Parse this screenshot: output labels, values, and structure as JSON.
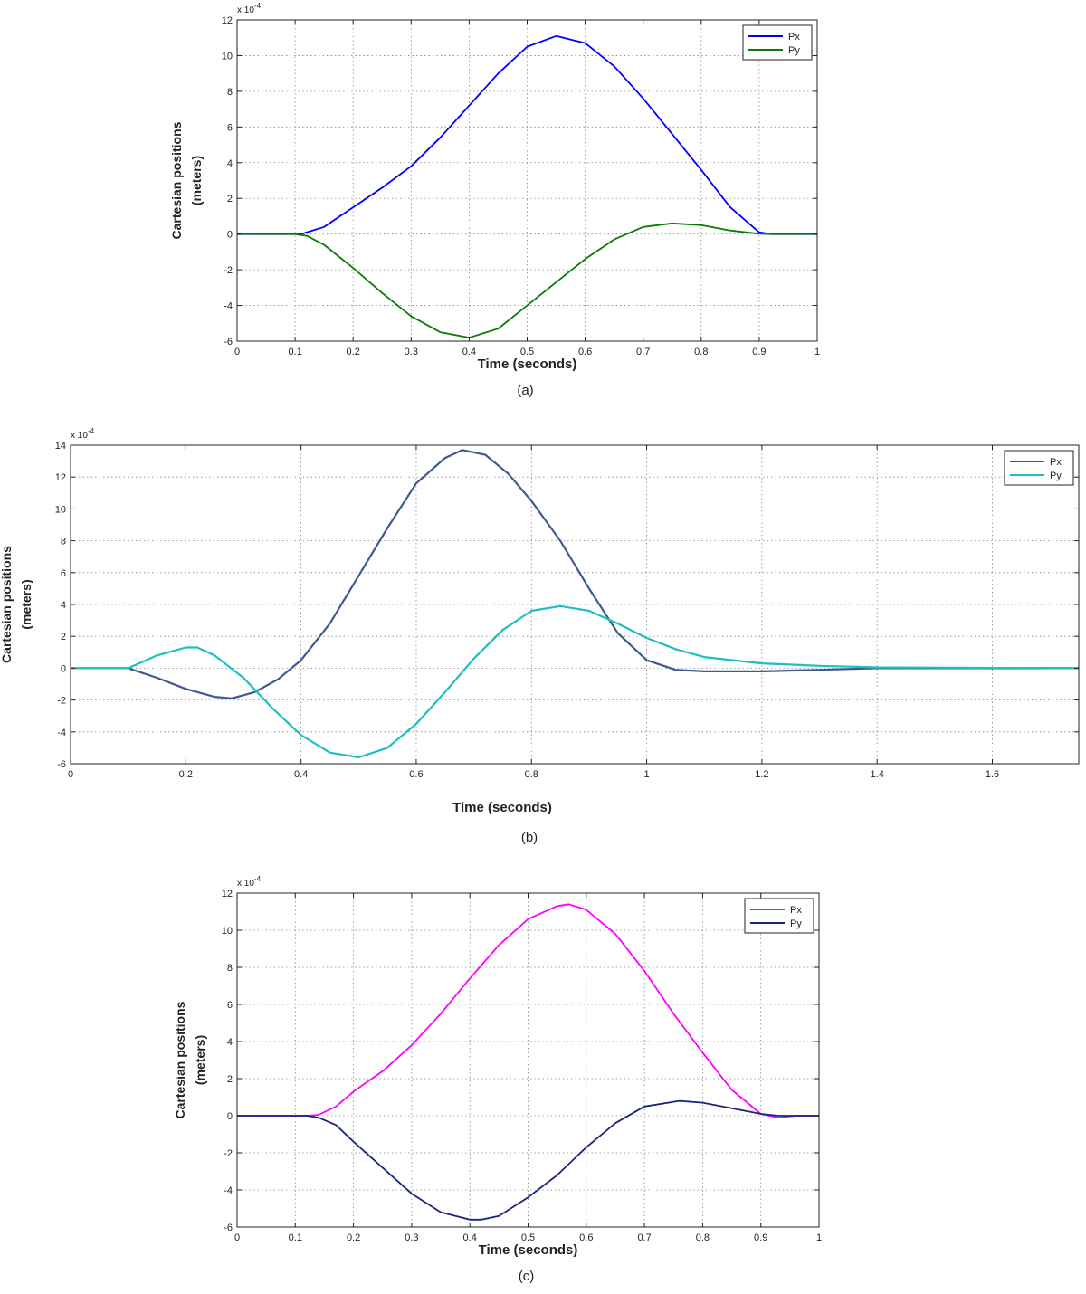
{
  "charts": [
    {
      "caption": "(a)",
      "exponent_label": "x 10",
      "exponent_power": "-4",
      "chart_data": {
        "type": "line",
        "xlabel": "Time (seconds)",
        "ylabel_line1": "Cartesian positions",
        "ylabel_line2": "(meters)",
        "xlim": [
          0,
          1
        ],
        "ylim": [
          -6,
          12
        ],
        "xticks": [
          0,
          0.1,
          0.2,
          0.3,
          0.4,
          0.5,
          0.6,
          0.7,
          0.8,
          0.9,
          1
        ],
        "yticks": [
          -6,
          -4,
          -2,
          0,
          2,
          4,
          6,
          8,
          10,
          12
        ],
        "grid": true,
        "legend_position": "top-right",
        "series": [
          {
            "name": "Px",
            "color": "#0000ff",
            "x": [
              0,
              0.1,
              0.11,
              0.15,
              0.2,
              0.25,
              0.3,
              0.35,
              0.4,
              0.45,
              0.5,
              0.55,
              0.6,
              0.65,
              0.7,
              0.75,
              0.8,
              0.85,
              0.9,
              0.92,
              1.0
            ],
            "y": [
              0,
              0,
              0,
              0.4,
              1.5,
              2.6,
              3.8,
              5.4,
              7.2,
              9.0,
              10.5,
              11.1,
              10.7,
              9.4,
              7.6,
              5.6,
              3.6,
              1.5,
              0.1,
              0,
              0
            ]
          },
          {
            "name": "Py",
            "color": "#0a7a0a",
            "x": [
              0,
              0.1,
              0.12,
              0.15,
              0.2,
              0.25,
              0.3,
              0.35,
              0.4,
              0.45,
              0.5,
              0.55,
              0.6,
              0.65,
              0.7,
              0.75,
              0.8,
              0.85,
              0.9,
              0.92,
              1.0
            ],
            "y": [
              0,
              0,
              -0.1,
              -0.6,
              -1.9,
              -3.3,
              -4.6,
              -5.5,
              -5.8,
              -5.3,
              -4.0,
              -2.7,
              -1.4,
              -0.3,
              0.4,
              0.6,
              0.5,
              0.2,
              0.02,
              0,
              0
            ]
          }
        ]
      }
    },
    {
      "caption": "(b)",
      "exponent_label": "x 10",
      "exponent_power": "-4",
      "chart_data": {
        "type": "line",
        "xlabel": "Time (seconds)",
        "ylabel_line1": "Cartesian positions",
        "ylabel_line2": "(meters)",
        "xlim": [
          0,
          1.75
        ],
        "ylim": [
          -6,
          14
        ],
        "xticks": [
          0,
          0.2,
          0.4,
          0.6,
          0.8,
          1,
          1.2,
          1.4,
          1.6
        ],
        "yticks": [
          -6,
          -4,
          -2,
          0,
          2,
          4,
          6,
          8,
          10,
          12,
          14
        ],
        "grid": true,
        "legend_position": "top-right",
        "series": [
          {
            "name": "Px",
            "color": "#3f5a8e",
            "x": [
              0,
              0.1,
              0.15,
              0.2,
              0.25,
              0.28,
              0.32,
              0.36,
              0.4,
              0.45,
              0.5,
              0.55,
              0.6,
              0.65,
              0.68,
              0.72,
              0.76,
              0.8,
              0.85,
              0.9,
              0.95,
              1.0,
              1.05,
              1.1,
              1.2,
              1.3,
              1.4,
              1.75
            ],
            "y": [
              0,
              0,
              -0.6,
              -1.3,
              -1.8,
              -1.9,
              -1.5,
              -0.7,
              0.5,
              2.8,
              5.8,
              8.8,
              11.6,
              13.2,
              13.7,
              13.4,
              12.2,
              10.5,
              8.0,
              5.0,
              2.2,
              0.5,
              -0.1,
              -0.2,
              -0.2,
              -0.1,
              0,
              0
            ]
          },
          {
            "name": "Py",
            "color": "#1fbfbf",
            "x": [
              0,
              0.1,
              0.15,
              0.2,
              0.22,
              0.25,
              0.3,
              0.35,
              0.4,
              0.45,
              0.5,
              0.55,
              0.6,
              0.65,
              0.7,
              0.75,
              0.8,
              0.85,
              0.9,
              0.95,
              1.0,
              1.05,
              1.1,
              1.2,
              1.3,
              1.4,
              1.75
            ],
            "y": [
              0,
              0,
              0.8,
              1.3,
              1.3,
              0.8,
              -0.6,
              -2.5,
              -4.2,
              -5.3,
              -5.6,
              -5.0,
              -3.5,
              -1.5,
              0.6,
              2.4,
              3.6,
              3.9,
              3.6,
              2.8,
              1.9,
              1.2,
              0.7,
              0.3,
              0.15,
              0.05,
              0
            ]
          }
        ]
      }
    },
    {
      "caption": "(c)",
      "exponent_label": "x 10",
      "exponent_power": "-4",
      "chart_data": {
        "type": "line",
        "xlabel": "Time (seconds)",
        "ylabel_line1": "Cartesian positions",
        "ylabel_line2": "(meters)",
        "xlim": [
          0,
          1
        ],
        "ylim": [
          -6,
          12
        ],
        "xticks": [
          0,
          0.1,
          0.2,
          0.3,
          0.4,
          0.5,
          0.6,
          0.7,
          0.8,
          0.9,
          1
        ],
        "yticks": [
          -6,
          -4,
          -2,
          0,
          2,
          4,
          6,
          8,
          10,
          12
        ],
        "grid": true,
        "legend_position": "top-right",
        "series": [
          {
            "name": "Px",
            "color": "#ff00ff",
            "x": [
              0,
              0.12,
              0.14,
              0.17,
              0.2,
              0.25,
              0.3,
              0.35,
              0.4,
              0.45,
              0.5,
              0.55,
              0.57,
              0.6,
              0.65,
              0.7,
              0.75,
              0.8,
              0.85,
              0.9,
              0.93,
              0.96,
              1.0
            ],
            "y": [
              0,
              0,
              0.05,
              0.5,
              1.3,
              2.4,
              3.8,
              5.5,
              7.4,
              9.2,
              10.6,
              11.3,
              11.4,
              11.1,
              9.8,
              7.8,
              5.5,
              3.4,
              1.4,
              0.1,
              -0.1,
              0,
              0
            ]
          },
          {
            "name": "Py",
            "color": "#1a237e",
            "x": [
              0,
              0.12,
              0.14,
              0.17,
              0.2,
              0.25,
              0.3,
              0.35,
              0.4,
              0.42,
              0.45,
              0.5,
              0.55,
              0.6,
              0.65,
              0.7,
              0.76,
              0.8,
              0.85,
              0.9,
              0.93,
              1.0
            ],
            "y": [
              0,
              0,
              -0.1,
              -0.5,
              -1.4,
              -2.8,
              -4.2,
              -5.2,
              -5.6,
              -5.6,
              -5.4,
              -4.4,
              -3.2,
              -1.7,
              -0.4,
              0.5,
              0.8,
              0.7,
              0.4,
              0.1,
              0,
              0
            ]
          }
        ]
      }
    }
  ]
}
